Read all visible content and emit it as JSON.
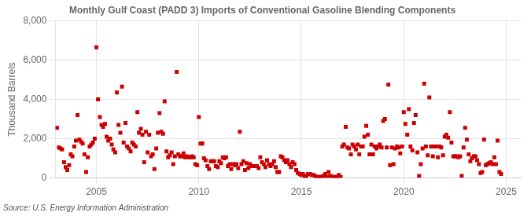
{
  "chart_data": {
    "type": "scatter",
    "title": "Monthly Gulf Coast (PADD 3) Imports of Conventional Gasoline Blending Components",
    "ylabel": "Thousand Barrels",
    "annotations": [
      "Source: U.S. Energy Information Administration"
    ],
    "color": "#cc0000",
    "marker": "square",
    "grid": true,
    "xlim": [
      2003.0,
      2025.75
    ],
    "xticks": [
      2005,
      2010,
      2015,
      2020,
      2025
    ],
    "ylim": [
      0,
      8000
    ],
    "yticks": [
      0,
      {
        "value": 2000,
        "label": "2,000"
      },
      {
        "value": 4000,
        "label": "4,000"
      },
      {
        "value": 6000,
        "label": "6,000"
      },
      {
        "value": 8000,
        "label": "8,000"
      }
    ],
    "x": [
      2003.08,
      2003.17,
      2003.25,
      2003.33,
      2003.42,
      2003.5,
      2003.58,
      2003.67,
      2003.75,
      2003.83,
      2003.92,
      2004.0,
      2004.08,
      2004.17,
      2004.25,
      2004.33,
      2004.42,
      2004.5,
      2004.58,
      2004.67,
      2004.75,
      2004.83,
      2004.92,
      2005.0,
      2005.08,
      2005.17,
      2005.25,
      2005.33,
      2005.42,
      2005.5,
      2005.58,
      2005.67,
      2005.75,
      2005.83,
      2005.92,
      2006.0,
      2006.08,
      2006.17,
      2006.25,
      2006.33,
      2006.42,
      2006.5,
      2006.58,
      2006.67,
      2006.75,
      2006.83,
      2006.92,
      2007.0,
      2007.08,
      2007.17,
      2007.25,
      2007.33,
      2007.42,
      2007.5,
      2007.58,
      2007.67,
      2007.75,
      2007.83,
      2007.92,
      2008.0,
      2008.08,
      2008.17,
      2008.25,
      2008.33,
      2008.42,
      2008.5,
      2008.58,
      2008.67,
      2008.75,
      2008.83,
      2008.92,
      2009.0,
      2009.08,
      2009.17,
      2009.25,
      2009.33,
      2009.42,
      2009.5,
      2009.58,
      2009.67,
      2009.75,
      2009.83,
      2009.92,
      2010.0,
      2010.08,
      2010.17,
      2010.25,
      2010.33,
      2010.42,
      2010.5,
      2010.58,
      2010.67,
      2010.75,
      2010.83,
      2010.92,
      2011.0,
      2011.08,
      2011.17,
      2011.25,
      2011.33,
      2011.42,
      2011.5,
      2011.58,
      2011.67,
      2011.75,
      2011.83,
      2011.92,
      2012.0,
      2012.08,
      2012.17,
      2012.25,
      2012.33,
      2012.42,
      2012.5,
      2012.58,
      2012.67,
      2012.75,
      2012.83,
      2012.92,
      2013.0,
      2013.08,
      2013.17,
      2013.25,
      2013.33,
      2013.42,
      2013.5,
      2013.58,
      2013.67,
      2013.75,
      2013.83,
      2013.92,
      2014.0,
      2014.08,
      2014.17,
      2014.25,
      2014.33,
      2014.42,
      2014.5,
      2014.58,
      2014.67,
      2014.75,
      2014.83,
      2014.92,
      2015.0,
      2015.08,
      2015.17,
      2015.25,
      2015.33,
      2015.42,
      2015.5,
      2015.58,
      2015.67,
      2015.75,
      2015.83,
      2015.92,
      2016.0,
      2016.08,
      2016.17,
      2016.25,
      2016.33,
      2016.42,
      2016.5,
      2016.58,
      2016.67,
      2016.75,
      2016.83,
      2016.92,
      2017.0,
      2017.08,
      2017.17,
      2017.25,
      2017.33,
      2017.42,
      2017.5,
      2017.58,
      2017.67,
      2017.75,
      2017.83,
      2017.92,
      2018.0,
      2018.08,
      2018.17,
      2018.25,
      2018.33,
      2018.42,
      2018.5,
      2018.58,
      2018.67,
      2018.75,
      2018.83,
      2018.92,
      2019.0,
      2019.08,
      2019.17,
      2019.25,
      2019.33,
      2019.42,
      2019.5,
      2019.58,
      2019.67,
      2019.75,
      2019.83,
      2019.92,
      2020.0,
      2020.08,
      2020.17,
      2020.25,
      2020.33,
      2020.42,
      2020.5,
      2020.58,
      2020.67,
      2020.75,
      2020.83,
      2020.92,
      2021.0,
      2021.08,
      2021.17,
      2021.25,
      2021.33,
      2021.42,
      2021.5,
      2021.58,
      2021.67,
      2021.75,
      2021.83,
      2021.92,
      2022.0,
      2022.08,
      2022.17,
      2022.25,
      2022.33,
      2022.42,
      2022.5,
      2022.58,
      2022.67,
      2022.75,
      2022.83,
      2022.92,
      2023.0,
      2023.08,
      2023.17,
      2023.25,
      2023.33,
      2023.42,
      2023.5,
      2023.58,
      2023.67,
      2023.75,
      2023.83,
      2023.92,
      2024.0,
      2024.08,
      2024.17,
      2024.25,
      2024.33,
      2024.42,
      2024.5,
      2024.58,
      2024.67,
      2024.75
    ],
    "values": [
      2550,
      1550,
      1500,
      1450,
      800,
      550,
      400,
      650,
      1200,
      1100,
      1600,
      1900,
      3200,
      1950,
      1850,
      1750,
      1200,
      300,
      1050,
      1600,
      1700,
      1800,
      2000,
      6650,
      4000,
      3100,
      2700,
      2600,
      2750,
      2100,
      1900,
      2000,
      1700,
      1450,
      1300,
      4350,
      2700,
      2300,
      4650,
      1800,
      2800,
      1600,
      1500,
      1350,
      1800,
      1700,
      1600,
      3350,
      2300,
      2500,
      2200,
      800,
      2350,
      1300,
      2200,
      1100,
      1200,
      450,
      1500,
      2300,
      3300,
      2350,
      2250,
      3900,
      1350,
      1050,
      1150,
      1300,
      700,
      1100,
      5400,
      1200,
      1100,
      1100,
      1250,
      1050,
      1100,
      1050,
      1050,
      1100,
      1050,
      700,
      650,
      3100,
      1750,
      1750,
      1000,
      900,
      600,
      450,
      850,
      850,
      850,
      600,
      550,
      850,
      750,
      1050,
      1000,
      1050,
      600,
      700,
      450,
      700,
      650,
      700,
      500,
      2350,
      700,
      850,
      400,
      750,
      500,
      700,
      600,
      600,
      600,
      600,
      500,
      1050,
      800,
      700,
      550,
      900,
      700,
      600,
      700,
      850,
      550,
      300,
      300,
      1100,
      1050,
      900,
      800,
      900,
      700,
      550,
      800,
      700,
      400,
      250,
      200,
      150,
      200,
      50,
      100,
      200,
      200,
      150,
      150,
      100,
      50,
      50,
      50,
      50,
      100,
      200,
      50,
      300,
      100,
      50,
      50,
      50,
      50,
      150,
      50,
      1600,
      1700,
      2600,
      1550,
      1500,
      1200,
      1700,
      1600,
      1450,
      1700,
      1200,
      1600,
      1600,
      2100,
      2650,
      2200,
      1200,
      1700,
      1200,
      1600,
      1500,
      1600,
      1700,
      1550,
      2900,
      3000,
      1550,
      4750,
      650,
      1550,
      700,
      1500,
      1600,
      1550,
      1250,
      1600,
      3350,
      2750,
      2200,
      3500,
      1600,
      1400,
      2800,
      3200,
      1300,
      100,
      700,
      1500,
      4800,
      1600,
      1150,
      4100,
      1600,
      1100,
      1600,
      1600,
      1050,
      1600,
      1550,
      1150,
      2100,
      2200,
      2050,
      3350,
      1800,
      1100,
      1100,
      1100,
      1050,
      1100,
      100,
      1550,
      2550,
      1950,
      1200,
      850,
      1000,
      1100,
      1100,
      900,
      700,
      250,
      300,
      1950,
      650,
      700,
      750,
      800,
      700,
      1050,
      700,
      1900,
      300,
      200
    ]
  }
}
